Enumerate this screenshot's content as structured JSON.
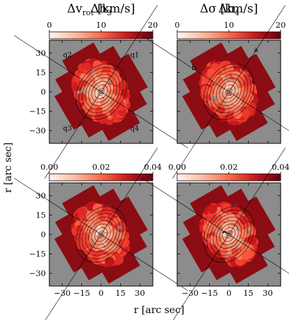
{
  "chart_data": [
    {
      "type": "heatmap",
      "title": "Δv",
      "title_sub": "rot",
      "title_unit": " [km/s]",
      "colorbar": {
        "range": [
          0,
          20
        ],
        "ticks": [
          "0",
          "10",
          "20"
        ],
        "colormap": "Reds"
      },
      "annotations": [
        "q2",
        "q1",
        "q3",
        "q4"
      ],
      "background_color": "#8c8c8c"
    },
    {
      "type": "heatmap",
      "title": "Δσ",
      "title_unit": " [km/s]",
      "colorbar": {
        "range": [
          0,
          20
        ],
        "ticks": [
          "0",
          "10",
          "20"
        ],
        "colormap": "Reds"
      },
      "annotations": [
        "a",
        "b"
      ],
      "background_color": "#8c8c8c"
    },
    {
      "type": "heatmap",
      "title": "Δh",
      "title_sub": "3",
      "colorbar": {
        "range": [
          0,
          0.04
        ],
        "ticks": [
          "0.00",
          "0.02",
          "0.04"
        ],
        "colormap": "Reds"
      },
      "background_color": "#8c8c8c"
    },
    {
      "type": "heatmap",
      "title": "Δh",
      "title_sub": "4",
      "colorbar": {
        "range": [
          0,
          0.04
        ],
        "ticks": [
          "0.00",
          "0.02",
          "0.04"
        ],
        "colormap": "Reds"
      },
      "background_color": "#8c8c8c"
    }
  ],
  "axes": {
    "xlabel": "r [arc sec]",
    "ylabel": "r [arc sec]",
    "xlim": [
      -40,
      40
    ],
    "ylim": [
      -40,
      40
    ],
    "xticks": [
      "−30",
      "−15",
      "0",
      "15",
      "30"
    ],
    "yticks": [
      "30",
      "15",
      "0",
      "−15",
      "−30"
    ],
    "tick_values": [
      -30,
      -15,
      0,
      15,
      30
    ]
  }
}
